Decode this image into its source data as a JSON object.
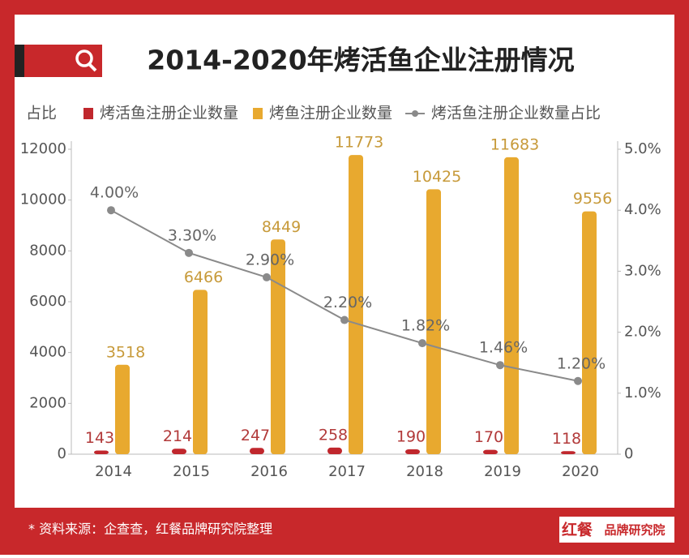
{
  "chart_data": {
    "type": "bar",
    "title": "2014-2020年烤活鱼企业注册情况",
    "ylabel": "占比",
    "categories": [
      "2014",
      "2015",
      "2016",
      "2017",
      "2018",
      "2019",
      "2020"
    ],
    "series": [
      {
        "name": "烤活鱼注册企业数量",
        "color": "#c0272d",
        "type": "bar",
        "values": [
          143,
          214,
          247,
          258,
          190,
          170,
          118
        ]
      },
      {
        "name": "烤鱼注册企业数量",
        "color": "#e8a92f",
        "type": "bar",
        "values": [
          3518,
          6466,
          8449,
          11773,
          10425,
          11683,
          9556
        ]
      },
      {
        "name": "烤活鱼注册企业数量占比",
        "color": "#8a8a8a",
        "type": "line",
        "axis": "y2",
        "values": [
          4.0,
          3.3,
          2.9,
          2.2,
          1.82,
          1.46,
          1.2
        ],
        "value_labels": [
          "4.00%",
          "3.30%",
          "2.90%",
          "2.20%",
          "1.82%",
          "1.46%",
          "1.20%"
        ]
      }
    ],
    "ylim": [
      0,
      12000
    ],
    "yticks": [
      0,
      2000,
      4000,
      6000,
      8000,
      10000,
      12000
    ],
    "y2lim": [
      0,
      5
    ],
    "y2ticks": [
      0,
      {
        "value": 1,
        "label": "1.0%"
      },
      {
        "value": 2,
        "label": "2.0%"
      },
      {
        "value": 3,
        "label": "3.0%"
      },
      {
        "value": 4,
        "label": "4.0%"
      },
      {
        "value": 5,
        "label": "5.0%"
      }
    ]
  },
  "footer": {
    "source": "* 资料来源：企查查，红餐品牌研究院整理",
    "logo_red": "红餐",
    "logo_text": "品牌研究院"
  }
}
